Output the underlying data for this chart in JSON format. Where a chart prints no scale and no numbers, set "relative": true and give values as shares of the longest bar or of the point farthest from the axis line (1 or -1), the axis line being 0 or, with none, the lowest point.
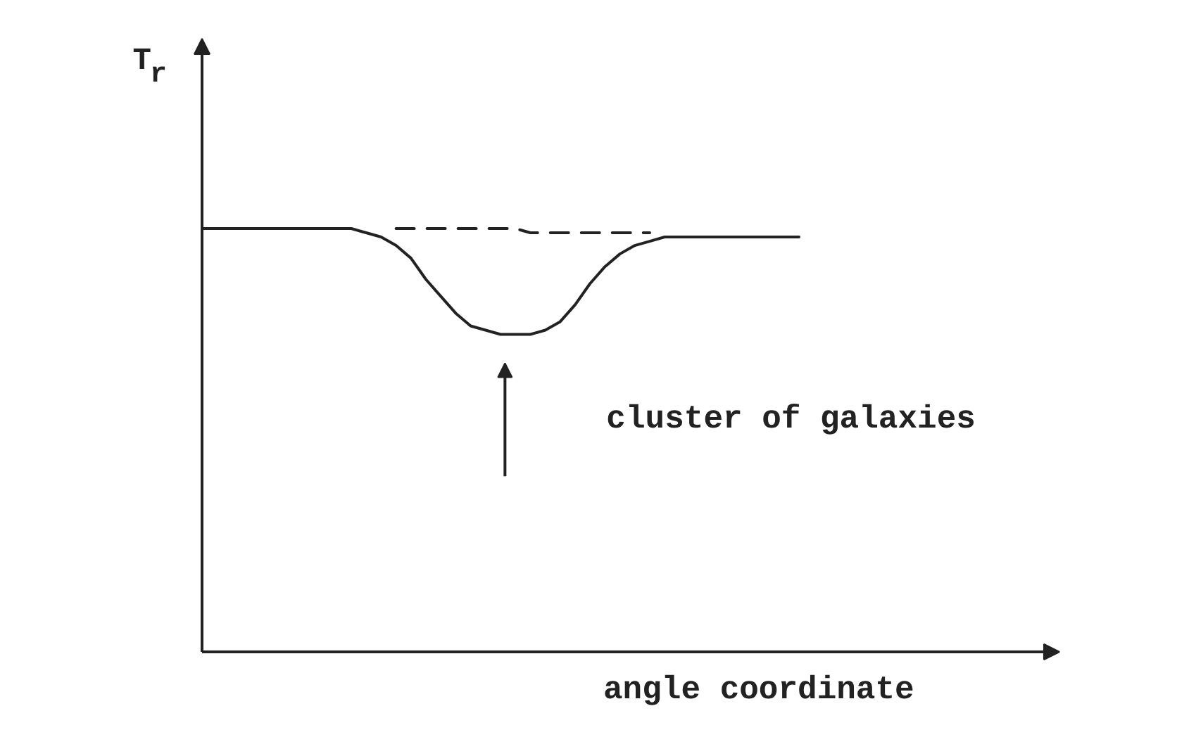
{
  "chart_data": {
    "type": "line",
    "relative": true,
    "xlabel": "angle coordinate",
    "ylabel": "T$_{r}$",
    "annotations": [
      "cluster of galaxies"
    ],
    "categories": [
      null,
      null,
      null,
      null,
      null,
      null,
      null,
      null,
      null,
      null,
      null,
      null,
      null,
      null,
      null,
      null,
      null,
      null,
      null,
      null,
      null,
      null,
      null,
      null,
      null,
      null,
      null,
      null,
      null,
      null,
      null,
      null,
      null,
      null,
      null,
      null,
      null,
      null,
      null,
      null,
      null
    ],
    "series": [
      {
        "color": "#222222",
        "line_style": "solid",
        "values": [
          1.0,
          1.0,
          1.0,
          1.0,
          1.0,
          1.0,
          1.0,
          1.0,
          1.0,
          1.0,
          1.0,
          0.99,
          0.98,
          0.96,
          0.93,
          0.88,
          0.84,
          0.8,
          0.77,
          0.76,
          0.75,
          0.75,
          0.75,
          0.76,
          0.78,
          0.82,
          0.87,
          0.91,
          0.94,
          0.96,
          0.97,
          0.98,
          0.98,
          0.98,
          0.98,
          0.98,
          0.98,
          0.98,
          0.98,
          0.98,
          0.98
        ]
      },
      {
        "color": "#222222",
        "line_style": "dashed",
        "values": [
          null,
          null,
          null,
          null,
          null,
          null,
          null,
          null,
          null,
          null,
          null,
          null,
          null,
          1.0,
          1.0,
          1.0,
          1.0,
          1.0,
          1.0,
          1.0,
          1.0,
          1.0,
          0.99,
          0.99,
          0.99,
          0.99,
          0.99,
          0.99,
          0.99,
          0.99,
          0.99,
          null,
          null,
          null,
          null,
          null,
          null,
          null,
          null,
          null,
          null
        ]
      }
    ]
  }
}
